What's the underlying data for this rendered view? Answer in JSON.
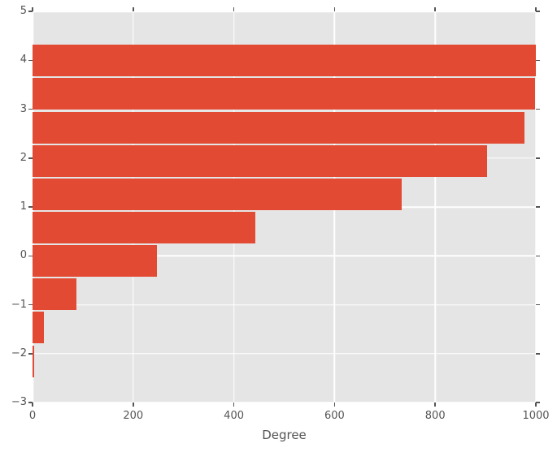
{
  "chart_data": {
    "type": "bar",
    "orientation": "horizontal",
    "title": "",
    "xlabel": "Degree",
    "ylabel": "",
    "xlim": [
      0,
      1000
    ],
    "ylim": [
      -3,
      5
    ],
    "x_ticks": [
      0,
      200,
      400,
      600,
      800,
      1000
    ],
    "x_tick_labels": [
      "0",
      "200",
      "400",
      "600",
      "800",
      "1000"
    ],
    "y_ticks": [
      5,
      4,
      3,
      2,
      1,
      0,
      -1,
      -2,
      -3
    ],
    "y_tick_labels": [
      "5",
      "4",
      "3",
      "2",
      "1",
      "0",
      "−1",
      "−2",
      "−3"
    ],
    "grid": true,
    "legend": false,
    "bar_height": 0.65,
    "bar_y_centers": [
      3.99,
      3.31,
      2.62,
      1.94,
      1.26,
      0.58,
      -0.11,
      -0.79,
      -1.47,
      -2.16
    ],
    "values": [
      1000,
      998,
      977,
      903,
      733,
      443,
      247,
      87,
      23,
      3
    ],
    "colors": {
      "bar": "#e24a33",
      "plot_background": "#e5e5e5",
      "figure_background": "#ffffff",
      "grid": "#ffffff",
      "tick": "#555555",
      "label": "#555555"
    }
  }
}
